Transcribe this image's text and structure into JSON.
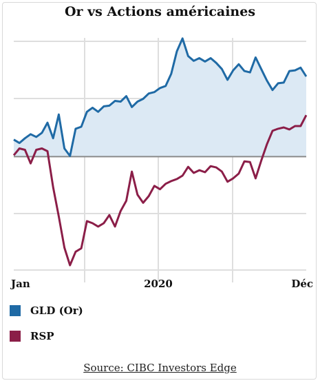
{
  "chart_data": {
    "type": "area",
    "title": "Or vs Actions américaines",
    "x_tick_labels": [
      "Jan",
      "2020",
      "Déc"
    ],
    "baseline": 0,
    "ylim": [
      -17,
      19
    ],
    "grid": true,
    "legend_placement": "bottom-left",
    "series": [
      {
        "name": "GLD (Or)",
        "color": "#1f6aa5",
        "fill": "#dce9f4",
        "values": [
          2.5,
          2.0,
          2.7,
          3.3,
          2.9,
          3.5,
          5.0,
          2.7,
          6.2,
          1.2,
          0.1,
          4.1,
          4.4,
          6.6,
          7.2,
          6.6,
          7.4,
          7.5,
          8.2,
          8.1,
          8.9,
          7.3,
          8.1,
          8.5,
          9.3,
          9.5,
          10.1,
          10.4,
          12.2,
          15.5,
          17.4,
          14.8,
          14.1,
          14.5,
          14.0,
          14.5,
          13.8,
          12.9,
          11.3,
          12.7,
          13.6,
          12.6,
          12.4,
          14.6,
          12.9,
          11.2,
          9.8,
          10.8,
          10.9,
          12.6,
          12.7,
          13.1,
          11.8
        ]
      },
      {
        "name": "RSP",
        "color": "#8b1e48",
        "fill": "none",
        "values": [
          0.2,
          1.2,
          1.0,
          -1.0,
          1.0,
          1.2,
          0.8,
          -4.5,
          -8.8,
          -13.4,
          -16.0,
          -14.0,
          -13.5,
          -9.5,
          -9.8,
          -10.3,
          -9.8,
          -8.6,
          -10.3,
          -8.0,
          -6.5,
          -2.2,
          -5.6,
          -6.8,
          -5.8,
          -4.3,
          -4.8,
          -4.0,
          -3.6,
          -3.3,
          -2.8,
          -1.5,
          -2.4,
          -2.0,
          -2.3,
          -1.4,
          -1.6,
          -2.2,
          -3.7,
          -3.2,
          -2.5,
          -0.7,
          -0.8,
          -3.2,
          -0.6,
          1.8,
          3.8,
          4.1,
          4.3,
          4.0,
          4.5,
          4.5,
          6.1
        ]
      }
    ]
  },
  "source_text": "Source: CIBC Investors Edge"
}
